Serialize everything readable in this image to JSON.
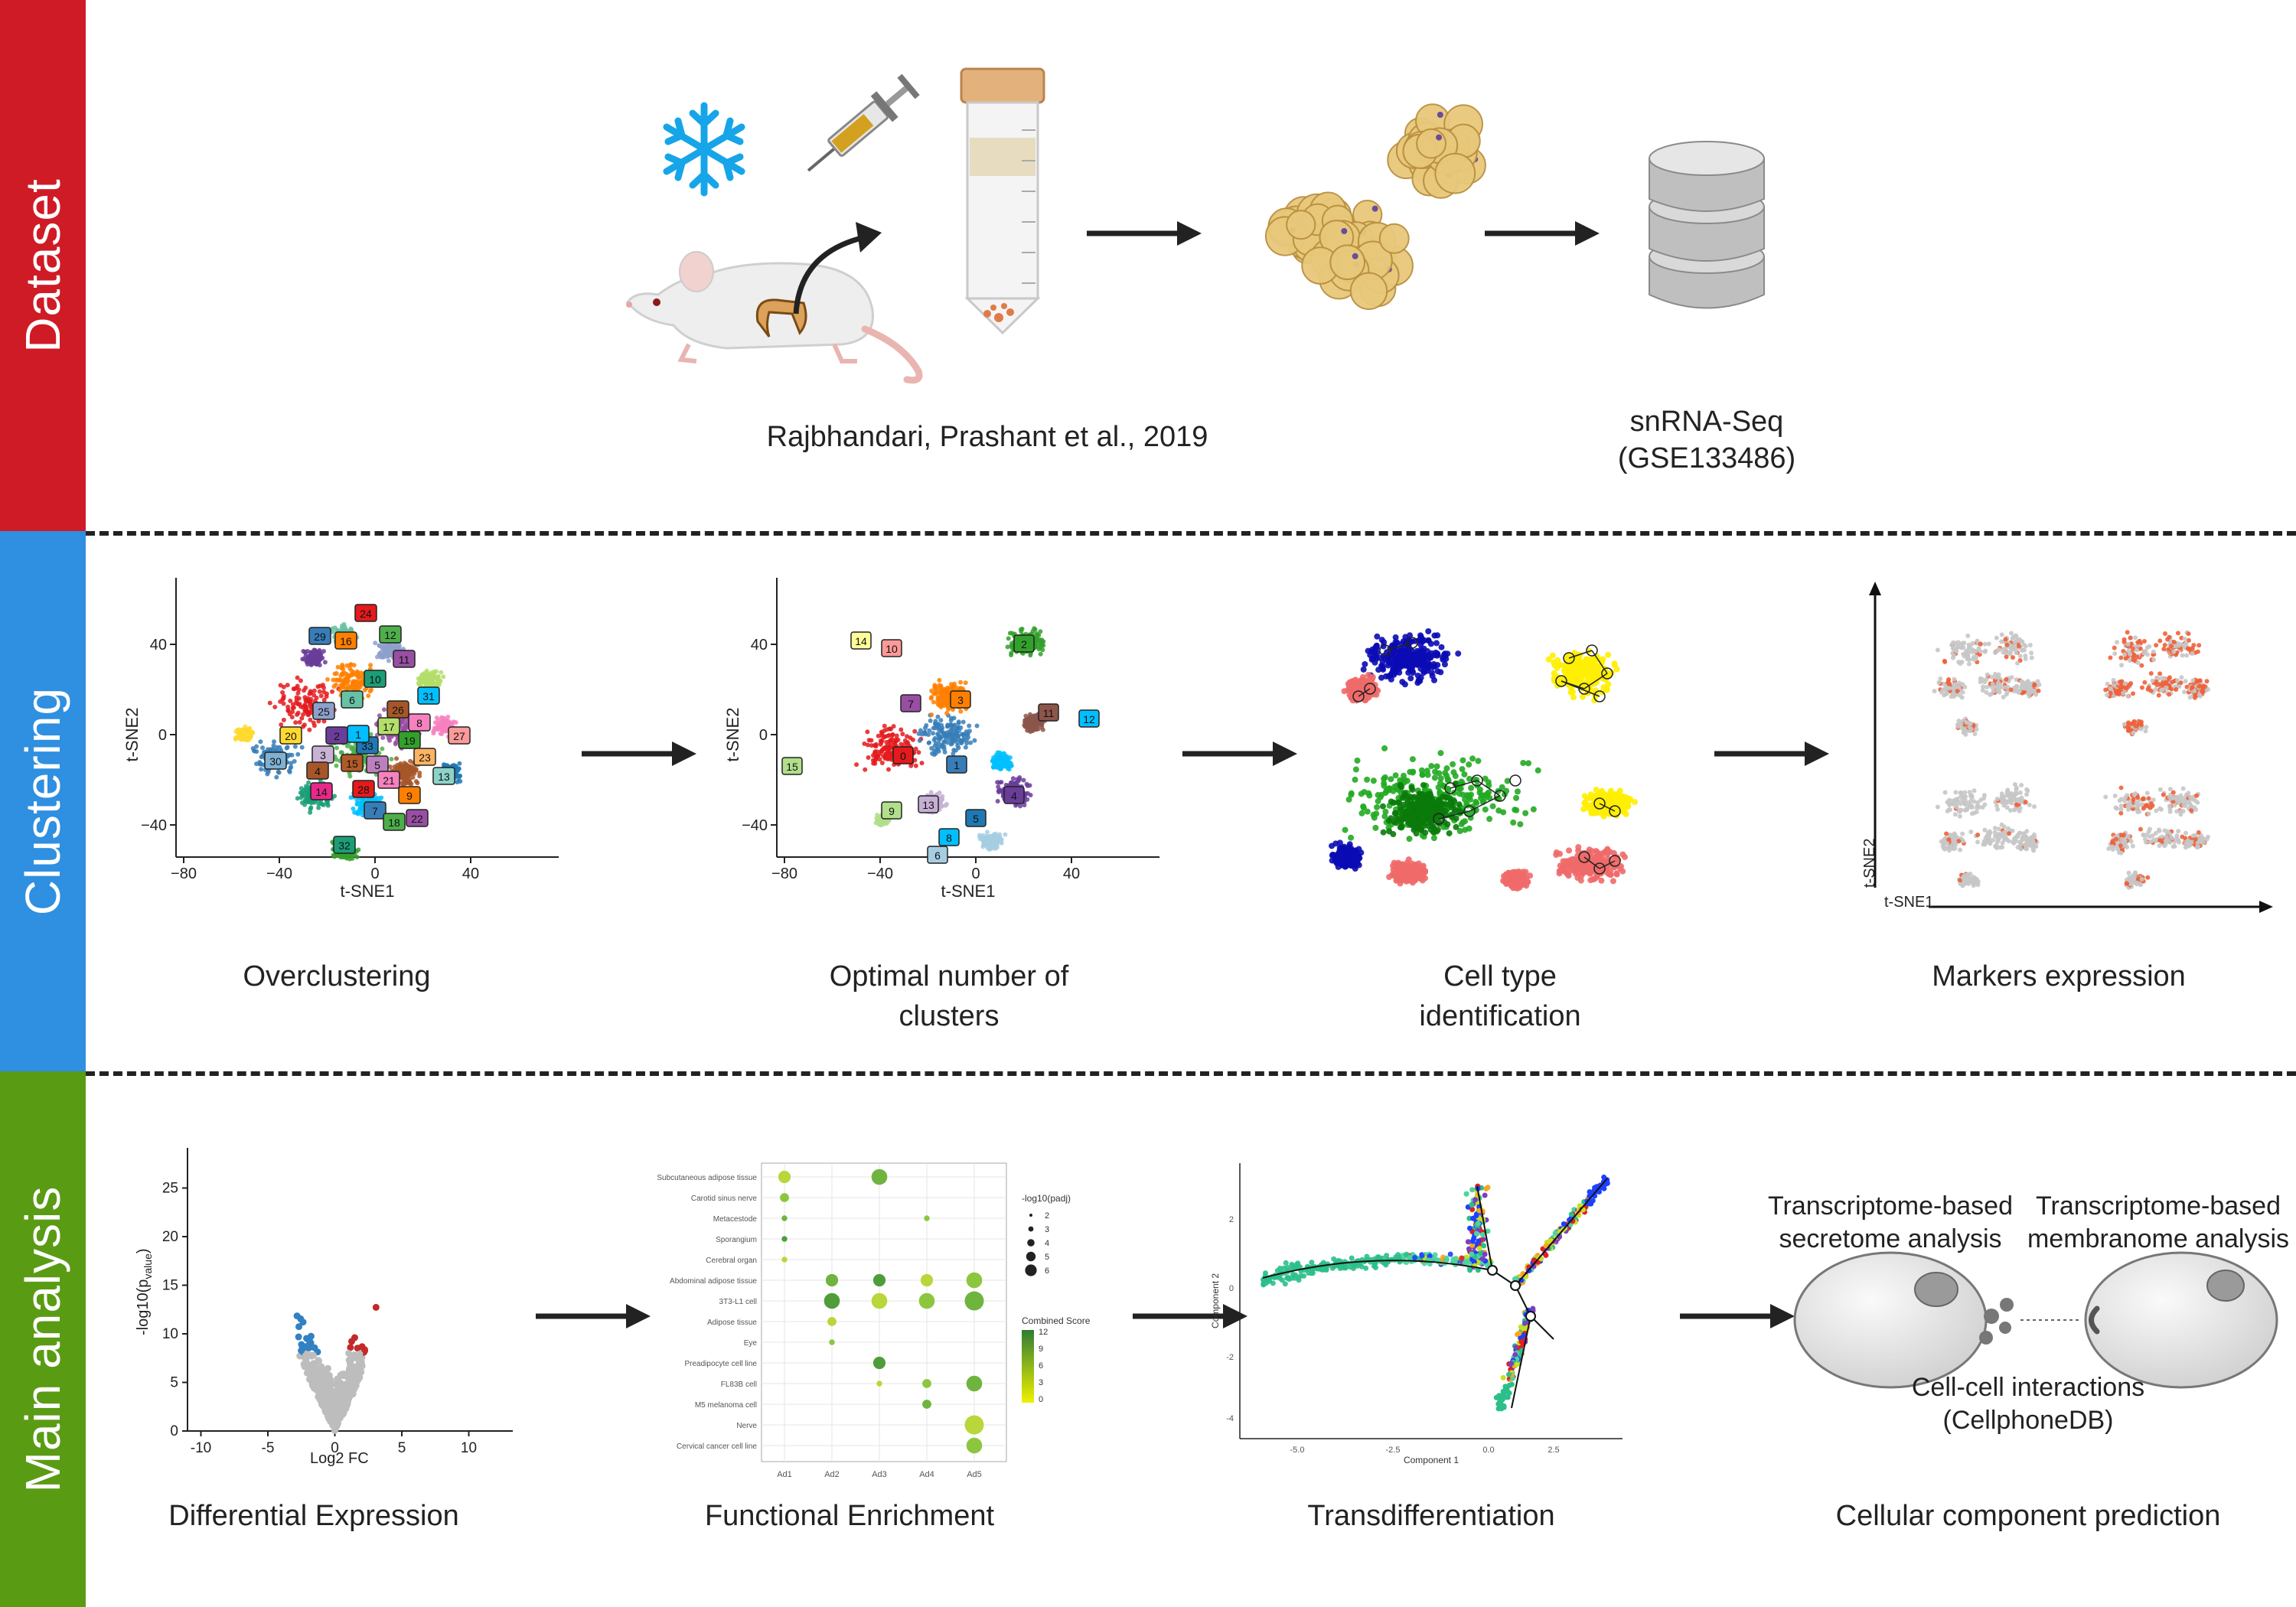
{
  "bands": {
    "dataset": {
      "label": "Dataset",
      "color": "#cf1b26"
    },
    "clustering": {
      "label": "Clustering",
      "color": "#2f8fe0"
    },
    "main": {
      "label": "Main analysis",
      "color": "#5a9b14"
    }
  },
  "dataset": {
    "citation": "Rajbhandari, Prashant et al., 2019",
    "seq_line1": "snRNA-Seq",
    "seq_line2": "(GSE133486)"
  },
  "clustering": {
    "over_caption": "Overclustering",
    "optimal_caption_1": "Optimal number of",
    "optimal_caption_2": "clusters",
    "celltype_caption_1": "Cell type",
    "celltype_caption_2": "identification",
    "markers_caption": "Markers expression",
    "xlabel": "t-SNE1",
    "ylabel": "t-SNE2",
    "x_ticks": [
      "−80",
      "−40",
      "0",
      "40"
    ],
    "y_ticks": [
      "40",
      "0",
      "−40"
    ],
    "over_clusters": [
      "24",
      "16",
      "29",
      "12",
      "11",
      "10",
      "31",
      "26",
      "8",
      "6",
      "25",
      "17",
      "20",
      "2",
      "33",
      "19",
      "27",
      "3",
      "15",
      "5",
      "30",
      "23",
      "13",
      "14",
      "28",
      "9",
      "7",
      "18",
      "22",
      "32",
      "1",
      "4",
      "21"
    ],
    "optimal_clusters": [
      "14",
      "10",
      "2",
      "3",
      "7",
      "11",
      "12",
      "15",
      "0",
      "1",
      "4",
      "9",
      "13",
      "5",
      "8",
      "6"
    ]
  },
  "main": {
    "de_caption": "Differential Expression",
    "fe_caption": "Functional Enrichment",
    "td_caption": "Transdifferentiation",
    "cc_caption": "Cellular component prediction",
    "volcano": {
      "xlabel": "Log2 FC",
      "ylabel": "-log10(p",
      "ylabel_sub": "value",
      "x_ticks": [
        "-10",
        "-5",
        "0",
        "5",
        "10"
      ],
      "y_ticks": [
        "0",
        "5",
        "10",
        "15",
        "20",
        "25"
      ]
    },
    "enrichment": {
      "terms": [
        "Subcutaneous adipose tissue",
        "Carotid sinus nerve",
        "Metacestode",
        "Sporangium",
        "Cerebral organ",
        "Abdominal adipose tissue",
        "3T3-L1 cell",
        "Adipose tissue",
        "Eye",
        "Preadipocyte cell line",
        "FL83B cell",
        "M5 melanoma cell",
        "Nerve",
        "Cervical cancer cell line"
      ],
      "samples": [
        "Ad1",
        "Ad2",
        "Ad3",
        "Ad4",
        "Ad5"
      ],
      "size_title": "-log10(padj)",
      "size_levels": [
        "2",
        "3",
        "4",
        "5",
        "6"
      ],
      "color_title": "Combined Score",
      "color_ticks": [
        "12",
        "9",
        "6",
        "3",
        "0"
      ]
    },
    "trajectory": {
      "xlabel": "Component 1",
      "ylabel": "Component 2",
      "x_ticks": [
        "-5.0",
        "-2.5",
        "0.0",
        "2.5"
      ],
      "y_ticks": [
        "2",
        "0",
        "-2",
        "-4"
      ]
    },
    "cellular": {
      "secretome_1": "Transcriptome-based",
      "secretome_2": "secretome analysis",
      "membranome_1": "Transcriptome-based",
      "membranome_2": "membranome analysis",
      "interactions_1": "Cell-cell interactions",
      "interactions_2": "(CellphoneDB)"
    }
  }
}
